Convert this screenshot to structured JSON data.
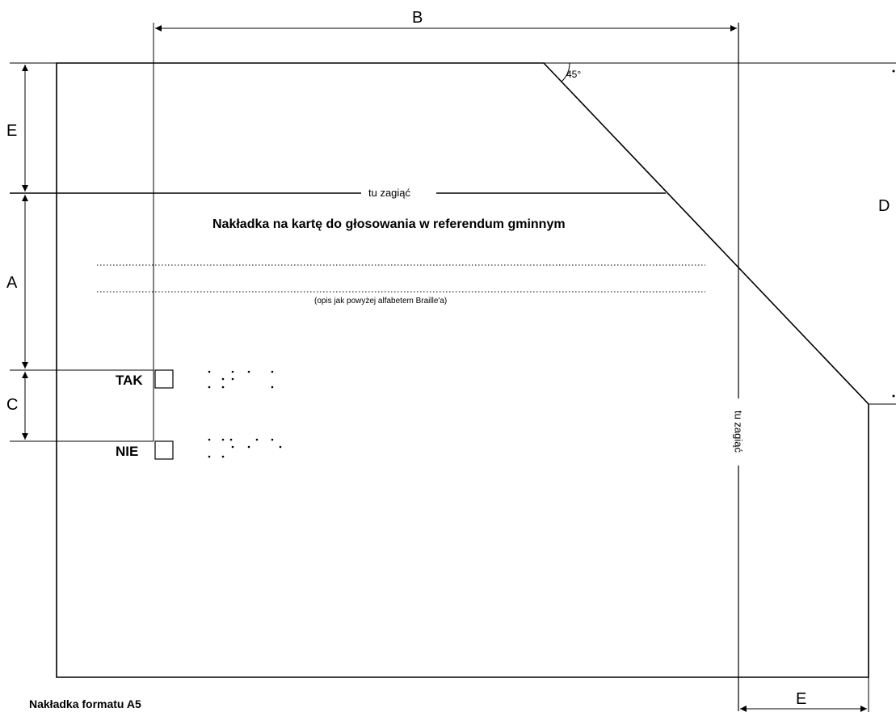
{
  "dimensions": {
    "a": "A",
    "b": "B",
    "c": "C",
    "d": "D",
    "e_left": "E",
    "e_bottom": "E"
  },
  "angle": "45°",
  "fold_label_horizontal": "tu zagiąć",
  "fold_label_vertical": "tu zagiąć",
  "title": "Nakładka na kartę do głosowania w referendum gminnym",
  "braille_note": "(opis jak powyżej alfabetem Braille'a)",
  "options": [
    {
      "label": "TAK"
    },
    {
      "label": "NIE"
    }
  ],
  "caption": "Nakładka formatu A5",
  "colors": {
    "line": "#000000",
    "background": "#ffffff"
  }
}
